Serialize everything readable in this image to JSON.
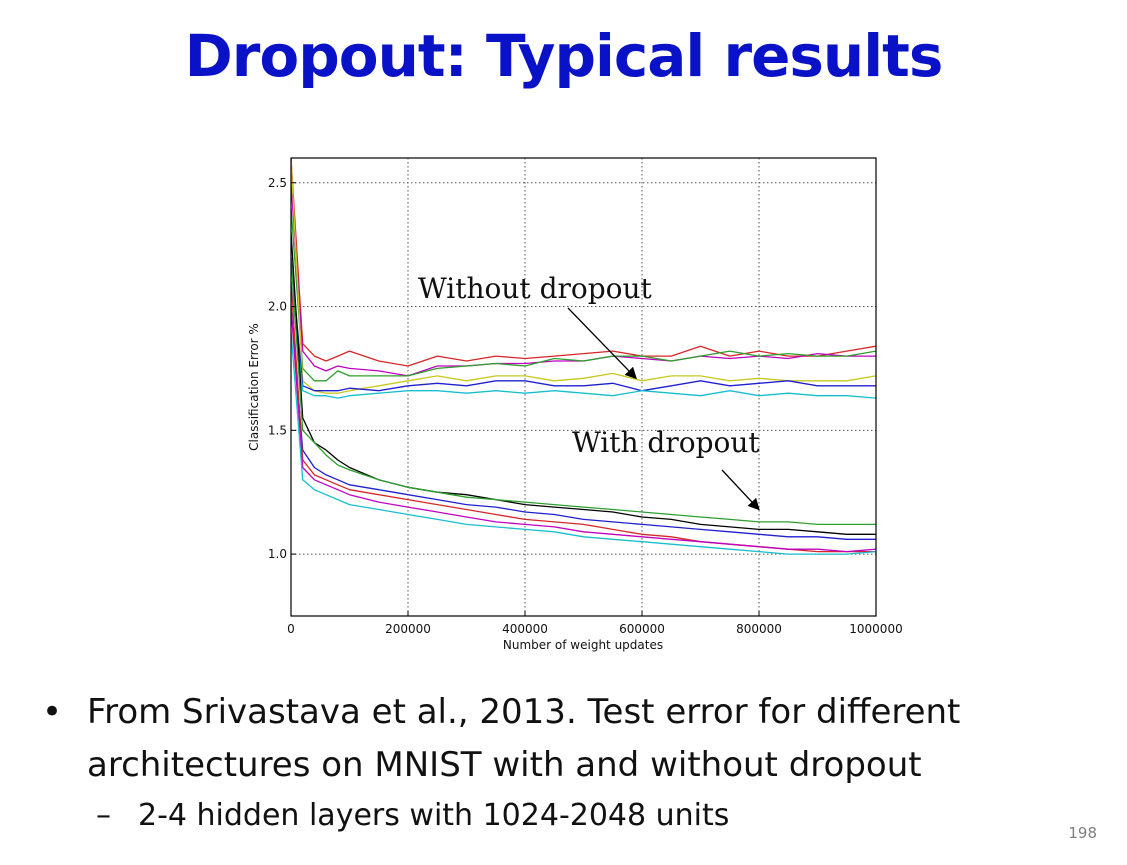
{
  "slide": {
    "title": "Dropout: Typical results",
    "bullets": [
      {
        "text": "From Srivastava et al., 2013.  Test error for different architectures on MNIST with and without dropout",
        "sub": [
          "2-4 hidden layers with 1024-2048 units"
        ]
      }
    ],
    "page_number": "198"
  },
  "chart_data": {
    "type": "line",
    "title": "",
    "xlabel": "Number of weight updates",
    "ylabel": "Classification Error %",
    "xlim": [
      0,
      1000000
    ],
    "ylim": [
      0.75,
      2.6
    ],
    "xticks": [
      0,
      200000,
      400000,
      600000,
      800000,
      1000000
    ],
    "xtick_labels": [
      "0",
      "200000",
      "400000",
      "600000",
      "800000",
      "1000000"
    ],
    "yticks": [
      1.0,
      1.5,
      2.0,
      2.5
    ],
    "ytick_labels": [
      "1.0",
      "1.5",
      "2.0",
      "2.5"
    ],
    "grid": true,
    "annotations": [
      {
        "text": "Without dropout",
        "arrow_to": [
          590000,
          1.71
        ]
      },
      {
        "text": "With dropout",
        "arrow_to": [
          800000,
          1.18
        ]
      }
    ],
    "x": [
      0,
      20000,
      40000,
      60000,
      80000,
      100000,
      150000,
      200000,
      250000,
      300000,
      350000,
      400000,
      450000,
      500000,
      550000,
      600000,
      650000,
      700000,
      750000,
      800000,
      850000,
      900000,
      950000,
      1000000
    ],
    "series": [
      {
        "group": "without dropout",
        "color": "#d62728",
        "values": [
          2.6,
          1.85,
          1.8,
          1.78,
          1.8,
          1.82,
          1.78,
          1.76,
          1.8,
          1.78,
          1.8,
          1.79,
          1.8,
          1.81,
          1.82,
          1.8,
          1.8,
          1.84,
          1.8,
          1.82,
          1.8,
          1.8,
          1.82,
          1.84
        ]
      },
      {
        "group": "without dropout",
        "color": "#c000c0",
        "values": [
          2.5,
          1.82,
          1.76,
          1.74,
          1.76,
          1.75,
          1.74,
          1.72,
          1.76,
          1.76,
          1.77,
          1.77,
          1.78,
          1.78,
          1.8,
          1.79,
          1.78,
          1.8,
          1.79,
          1.8,
          1.79,
          1.81,
          1.8,
          1.8
        ]
      },
      {
        "group": "without dropout",
        "color": "#2ca02c",
        "values": [
          2.4,
          1.75,
          1.7,
          1.7,
          1.74,
          1.72,
          1.72,
          1.72,
          1.75,
          1.76,
          1.77,
          1.76,
          1.79,
          1.78,
          1.8,
          1.8,
          1.78,
          1.8,
          1.82,
          1.8,
          1.81,
          1.8,
          1.8,
          1.82
        ]
      },
      {
        "group": "without dropout",
        "color": "#c8c820",
        "values": [
          2.6,
          1.7,
          1.66,
          1.65,
          1.65,
          1.66,
          1.68,
          1.7,
          1.72,
          1.7,
          1.72,
          1.72,
          1.7,
          1.71,
          1.73,
          1.7,
          1.72,
          1.72,
          1.7,
          1.71,
          1.7,
          1.7,
          1.7,
          1.72
        ]
      },
      {
        "group": "without dropout",
        "color": "#1f1fd0",
        "values": [
          2.2,
          1.68,
          1.66,
          1.66,
          1.66,
          1.67,
          1.66,
          1.68,
          1.69,
          1.68,
          1.7,
          1.7,
          1.68,
          1.68,
          1.69,
          1.66,
          1.68,
          1.7,
          1.68,
          1.69,
          1.7,
          1.68,
          1.68,
          1.68
        ]
      },
      {
        "group": "without dropout",
        "color": "#17becf",
        "values": [
          2.1,
          1.66,
          1.64,
          1.64,
          1.63,
          1.64,
          1.65,
          1.66,
          1.66,
          1.65,
          1.66,
          1.65,
          1.66,
          1.65,
          1.64,
          1.66,
          1.65,
          1.64,
          1.66,
          1.64,
          1.65,
          1.64,
          1.64,
          1.63
        ]
      },
      {
        "group": "with dropout",
        "color": "#000000",
        "values": [
          2.3,
          1.55,
          1.45,
          1.42,
          1.38,
          1.35,
          1.3,
          1.27,
          1.25,
          1.24,
          1.22,
          1.2,
          1.19,
          1.18,
          1.17,
          1.15,
          1.14,
          1.12,
          1.11,
          1.1,
          1.1,
          1.09,
          1.08,
          1.08
        ]
      },
      {
        "group": "with dropout",
        "color": "#2ca02c",
        "values": [
          2.2,
          1.5,
          1.45,
          1.4,
          1.36,
          1.34,
          1.3,
          1.27,
          1.25,
          1.23,
          1.22,
          1.21,
          1.2,
          1.19,
          1.18,
          1.17,
          1.16,
          1.15,
          1.14,
          1.13,
          1.13,
          1.12,
          1.12,
          1.12
        ]
      },
      {
        "group": "with dropout",
        "color": "#1f1fd0",
        "values": [
          2.0,
          1.42,
          1.35,
          1.32,
          1.3,
          1.28,
          1.26,
          1.24,
          1.22,
          1.2,
          1.19,
          1.17,
          1.16,
          1.14,
          1.13,
          1.12,
          1.11,
          1.1,
          1.09,
          1.08,
          1.07,
          1.07,
          1.06,
          1.06
        ]
      },
      {
        "group": "with dropout",
        "color": "#d62728",
        "values": [
          2.1,
          1.38,
          1.32,
          1.3,
          1.28,
          1.26,
          1.24,
          1.22,
          1.2,
          1.18,
          1.16,
          1.14,
          1.13,
          1.12,
          1.1,
          1.08,
          1.07,
          1.05,
          1.04,
          1.03,
          1.02,
          1.01,
          1.01,
          1.01
        ]
      },
      {
        "group": "with dropout",
        "color": "#c000c0",
        "values": [
          2.0,
          1.35,
          1.3,
          1.28,
          1.26,
          1.24,
          1.21,
          1.19,
          1.17,
          1.15,
          1.13,
          1.12,
          1.11,
          1.09,
          1.08,
          1.07,
          1.06,
          1.05,
          1.04,
          1.03,
          1.02,
          1.02,
          1.01,
          1.02
        ]
      },
      {
        "group": "with dropout",
        "color": "#17becf",
        "values": [
          1.9,
          1.3,
          1.26,
          1.24,
          1.22,
          1.2,
          1.18,
          1.16,
          1.14,
          1.12,
          1.11,
          1.1,
          1.09,
          1.07,
          1.06,
          1.05,
          1.04,
          1.03,
          1.02,
          1.01,
          1.0,
          1.0,
          1.0,
          1.01
        ]
      }
    ]
  }
}
